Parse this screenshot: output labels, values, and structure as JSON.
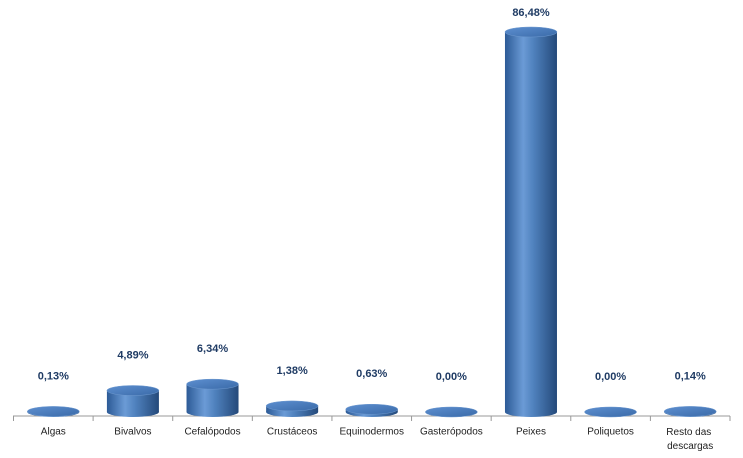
{
  "chart_data": {
    "type": "bar",
    "categories": [
      "Algas",
      "Bivalvos",
      "Cefalópodos",
      "Crustáceos",
      "Equinodermos",
      "Gasterópodos",
      "Peixes",
      "Poliquetos",
      "Resto das descargas"
    ],
    "values": [
      0.13,
      4.89,
      6.34,
      1.38,
      0.63,
      0.0,
      86.48,
      0.0,
      0.14
    ],
    "value_labels": [
      "0,13%",
      "4,89%",
      "6,34%",
      "1,38%",
      "0,63%",
      "0,00%",
      "86,48%",
      "0,00%",
      "0,14%"
    ],
    "color": "#4f81bd"
  }
}
